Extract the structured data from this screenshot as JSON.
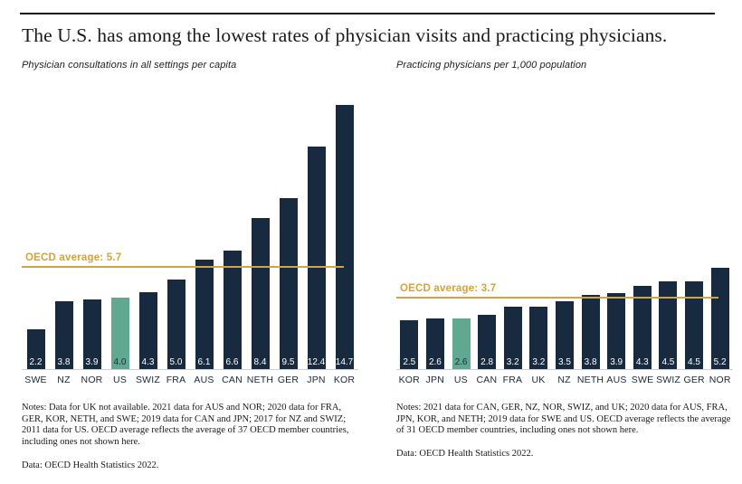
{
  "header": {
    "title": "The U.S. has among the lowest rates of physician visits and practicing physicians."
  },
  "colors": {
    "bar": "#172a40",
    "highlight": "#61a890",
    "average_line": "#d5a23c",
    "title_text": "#1b1b1f",
    "baseline": "#cdd0d4"
  },
  "chart_data": [
    {
      "type": "bar",
      "title": "Physician consultations in all settings per capita",
      "categories": [
        "SWE",
        "NZ",
        "NOR",
        "US",
        "SWIZ",
        "FRA",
        "AUS",
        "CAN",
        "NETH",
        "GER",
        "JPN",
        "KOR"
      ],
      "values": [
        2.2,
        3.8,
        3.9,
        4.0,
        4.3,
        5.0,
        6.1,
        6.6,
        8.4,
        9.5,
        12.4,
        14.7
      ],
      "value_labels": [
        "2.2",
        "3.8",
        "3.9",
        "4.0",
        "4.3",
        "5.0",
        "6.1",
        "6.6",
        "8.4",
        "9.5",
        "12.4",
        "14.7"
      ],
      "highlight_category": "US",
      "average": 5.7,
      "average_label": "OECD average: 5.7",
      "ylim": [
        0,
        14.7
      ],
      "grid": false,
      "legend": "none",
      "notes": "Notes: Data for UK not available. 2021 data for AUS and NOR; 2020 data for FRA, GER, KOR, NETH, and SWE; 2019 data for CAN and JPN; 2017 for NZ and SWIZ; 2011 data for US. OECD average reflects the average of 37 OECD member countries, including ones not shown here.",
      "source": "Data: OECD Health Statistics 2022."
    },
    {
      "type": "bar",
      "title": "Practicing physicians per 1,000 population",
      "categories": [
        "KOR",
        "JPN",
        "US",
        "CAN",
        "FRA",
        "UK",
        "NZ",
        "NETH",
        "AUS",
        "SWE",
        "SWIZ",
        "GER",
        "NOR"
      ],
      "values": [
        2.5,
        2.6,
        2.6,
        2.8,
        3.2,
        3.2,
        3.5,
        3.8,
        3.9,
        4.3,
        4.5,
        4.5,
        5.2
      ],
      "value_labels": [
        "2.5",
        "2.6",
        "2.6",
        "2.8",
        "3.2",
        "3.2",
        "3.5",
        "3.8",
        "3.9",
        "4.3",
        "4.5",
        "4.5",
        "5.2"
      ],
      "highlight_category": "US",
      "average": 3.7,
      "average_label": "OECD average: 3.7",
      "ylim": [
        0,
        13.6
      ],
      "grid": false,
      "legend": "none",
      "notes": "Notes: 2021 data for CAN, GER, NZ, NOR, SWIZ, and UK; 2020 data for AUS, FRA, JPN, KOR, and NETH; 2019 data for SWE and US. OECD average reflects the average of 31 OECD member countries, including ones not shown here.",
      "source": "Data: OECD Health Statistics 2022."
    }
  ]
}
